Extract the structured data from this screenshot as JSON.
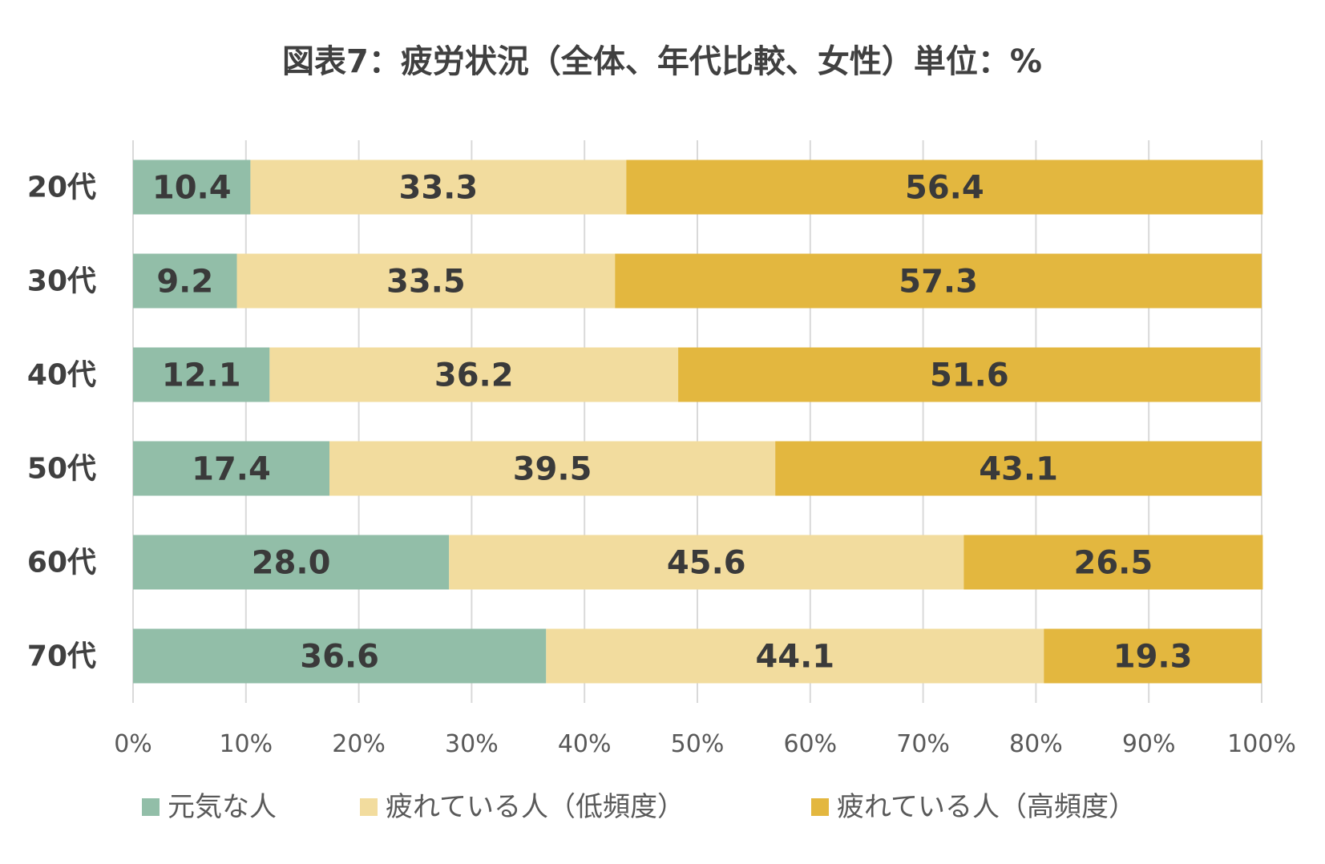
{
  "chart_data": {
    "type": "bar",
    "orientation": "horizontal",
    "stacked": "percent",
    "title": "図表7：疲労状況（全体、年代比較、女性）単位：%",
    "categories": [
      "20代",
      "30代",
      "40代",
      "50代",
      "60代",
      "70代"
    ],
    "series": [
      {
        "name": "元気な人",
        "color": "#92bea8",
        "values": [
          10.4,
          9.2,
          12.1,
          17.4,
          28.0,
          36.6
        ],
        "labels": [
          "10.4",
          "9.2",
          "12.1",
          "17.4",
          "28.0",
          "36.6"
        ]
      },
      {
        "name": "疲れている人（低頻度）",
        "color": "#f2dc9e",
        "values": [
          33.3,
          33.5,
          36.2,
          39.5,
          45.6,
          44.1
        ],
        "labels": [
          "33.3",
          "33.5",
          "36.2",
          "39.5",
          "45.6",
          "44.1"
        ]
      },
      {
        "name": "疲れている人（高頻度）",
        "color": "#e3b73f",
        "values": [
          56.4,
          57.3,
          51.6,
          43.1,
          26.5,
          19.3
        ],
        "labels": [
          "56.4",
          "57.3",
          "51.6",
          "43.1",
          "26.5",
          "19.3"
        ]
      }
    ],
    "xlim": [
      0,
      100
    ],
    "xticks": [
      "0%",
      "10%",
      "20%",
      "30%",
      "40%",
      "50%",
      "60%",
      "70%",
      "80%",
      "90%",
      "100%"
    ],
    "grid": true,
    "legend_position": "bottom"
  }
}
